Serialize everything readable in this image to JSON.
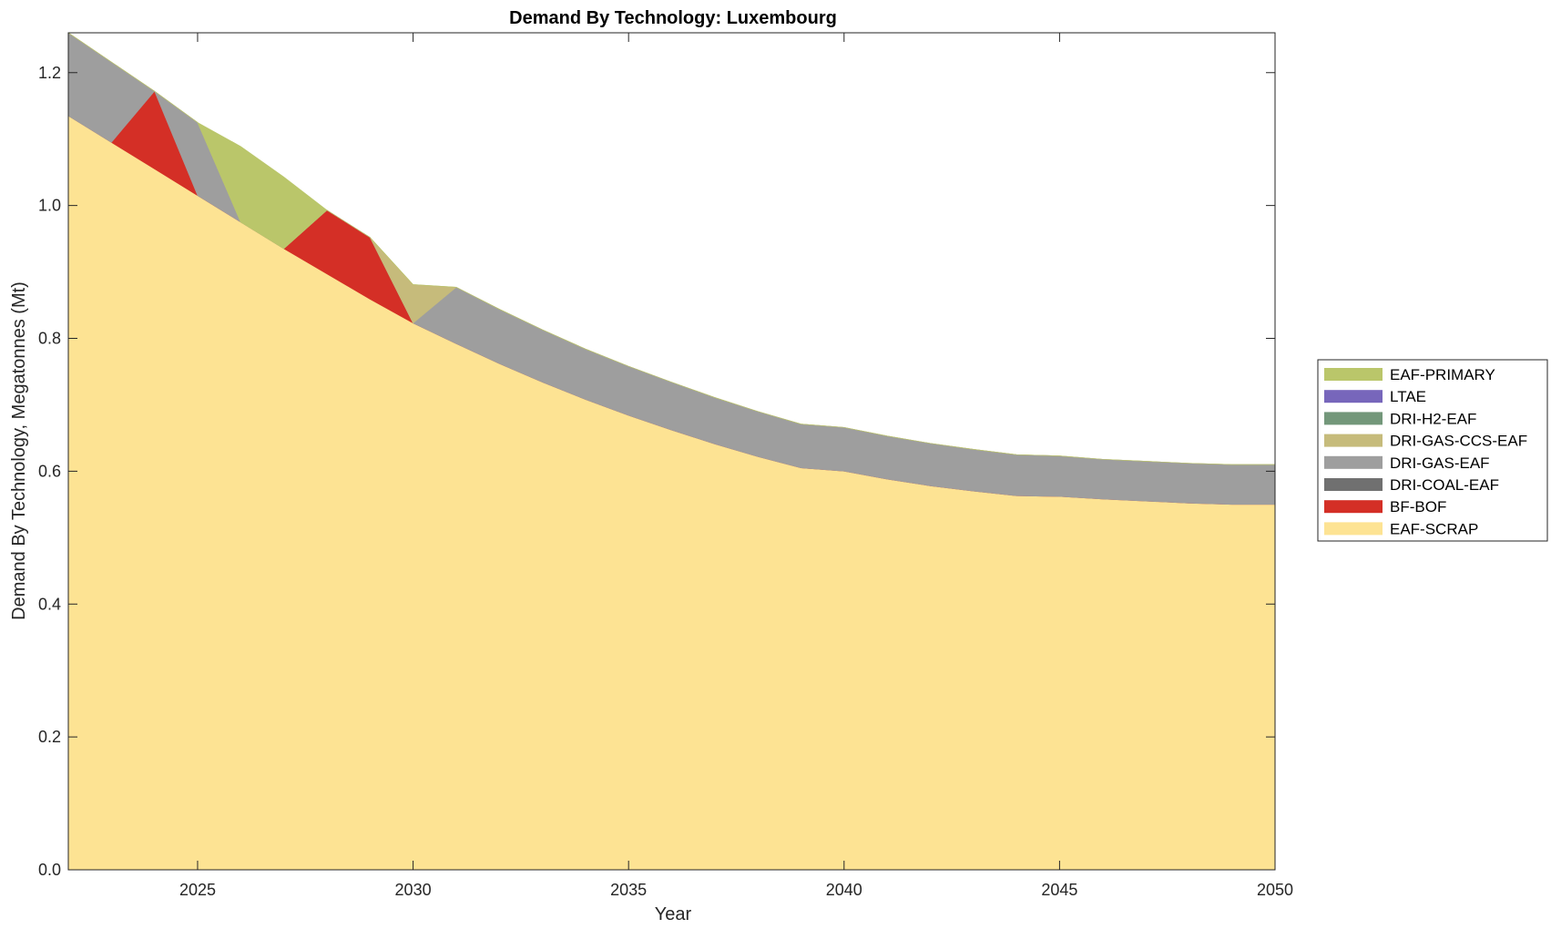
{
  "chart_data": {
    "type": "area",
    "stacked": true,
    "title": "Demand By Technology: Luxembourg",
    "xlabel": "Year",
    "ylabel": "Demand By Technology, Megatonnes (Mt)",
    "xlim": [
      2022,
      2050
    ],
    "ylim": [
      0,
      1.26
    ],
    "xticks": [
      2025,
      2030,
      2035,
      2040,
      2045,
      2050
    ],
    "yticks": [
      0,
      0.2,
      0.4,
      0.6,
      0.8,
      1.0,
      1.2
    ],
    "ytick_labels": [
      "0.0",
      "0.2",
      "0.4",
      "0.6",
      "0.8",
      "1.0",
      "1.2"
    ],
    "grid": false,
    "legend_position": "right",
    "legend": [
      "EAF-PRIMARY",
      "LTAE",
      "DRI-H2-EAF",
      "DRI-GAS-CCS-EAF",
      "DRI-GAS-EAF",
      "DRI-COAL-EAF",
      "BF-BOF",
      "EAF-SCRAP"
    ],
    "x": [
      2022,
      2023,
      2024,
      2025,
      2026,
      2027,
      2028,
      2029,
      2030,
      2031,
      2032,
      2033,
      2034,
      2035,
      2036,
      2037,
      2038,
      2039,
      2040,
      2041,
      2042,
      2043,
      2044,
      2045,
      2046,
      2047,
      2048,
      2049,
      2050
    ],
    "series": [
      {
        "name": "EAF-SCRAP",
        "color": "#FDE393",
        "values": [
          1.135,
          1.095,
          1.055,
          1.015,
          0.975,
          0.935,
          0.897,
          0.859,
          0.823,
          0.792,
          0.762,
          0.734,
          0.708,
          0.684,
          0.662,
          0.641,
          0.622,
          0.605,
          0.6,
          0.588,
          0.578,
          0.57,
          0.563,
          0.562,
          0.558,
          0.555,
          0.552,
          0.55,
          0.55
        ]
      },
      {
        "name": "BF-BOF",
        "color": "#D42F26",
        "values": [
          0,
          0,
          0.117,
          0,
          0,
          0,
          0.096,
          0.093,
          0,
          0,
          0,
          0,
          0,
          0,
          0,
          0,
          0,
          0,
          0,
          0,
          0,
          0,
          0,
          0,
          0,
          0,
          0,
          0,
          0
        ]
      },
      {
        "name": "DRI-COAL-EAF",
        "color": "#707070",
        "values": [
          0,
          0,
          0,
          0,
          0,
          0,
          0,
          0,
          0,
          0,
          0,
          0,
          0,
          0,
          0,
          0,
          0,
          0,
          0,
          0,
          0,
          0,
          0,
          0,
          0,
          0,
          0,
          0,
          0
        ]
      },
      {
        "name": "DRI-GAS-EAF",
        "color": "#9E9E9E",
        "values": [
          0.125,
          0.121,
          0,
          0.11,
          0,
          0,
          0,
          0,
          0,
          0.085,
          0.082,
          0.079,
          0.076,
          0.074,
          0.072,
          0.07,
          0.068,
          0.066,
          0.066,
          0.065,
          0.064,
          0.063,
          0.062,
          0.061,
          0.06,
          0.06,
          0.06,
          0.06,
          0.06
        ]
      },
      {
        "name": "DRI-GAS-CCS-EAF",
        "color": "#C6BB7B",
        "values": [
          0,
          0,
          0,
          0,
          0,
          0,
          0,
          0,
          0.058,
          0,
          0,
          0,
          0,
          0,
          0,
          0,
          0,
          0,
          0,
          0,
          0,
          0,
          0,
          0,
          0,
          0,
          0,
          0,
          0
        ]
      },
      {
        "name": "DRI-H2-EAF",
        "color": "#73977A",
        "values": [
          0,
          0,
          0,
          0,
          0,
          0,
          0,
          0,
          0,
          0,
          0,
          0,
          0,
          0,
          0,
          0,
          0,
          0,
          0,
          0,
          0,
          0,
          0,
          0,
          0,
          0,
          0,
          0,
          0
        ]
      },
      {
        "name": "LTAE",
        "color": "#7766BB",
        "values": [
          0,
          0,
          0,
          0,
          0,
          0,
          0,
          0,
          0,
          0,
          0,
          0,
          0,
          0,
          0,
          0,
          0,
          0,
          0,
          0,
          0,
          0,
          0,
          0,
          0,
          0,
          0,
          0,
          0
        ]
      },
      {
        "name": "EAF-PRIMARY",
        "color": "#BAC66A",
        "values": [
          0,
          0,
          0,
          0,
          0.114,
          0.108,
          0,
          0,
          0,
          0,
          0,
          0,
          0,
          0,
          0,
          0,
          0,
          0,
          0,
          0,
          0,
          0,
          0,
          0,
          0,
          0,
          0,
          0,
          0
        ]
      }
    ]
  }
}
